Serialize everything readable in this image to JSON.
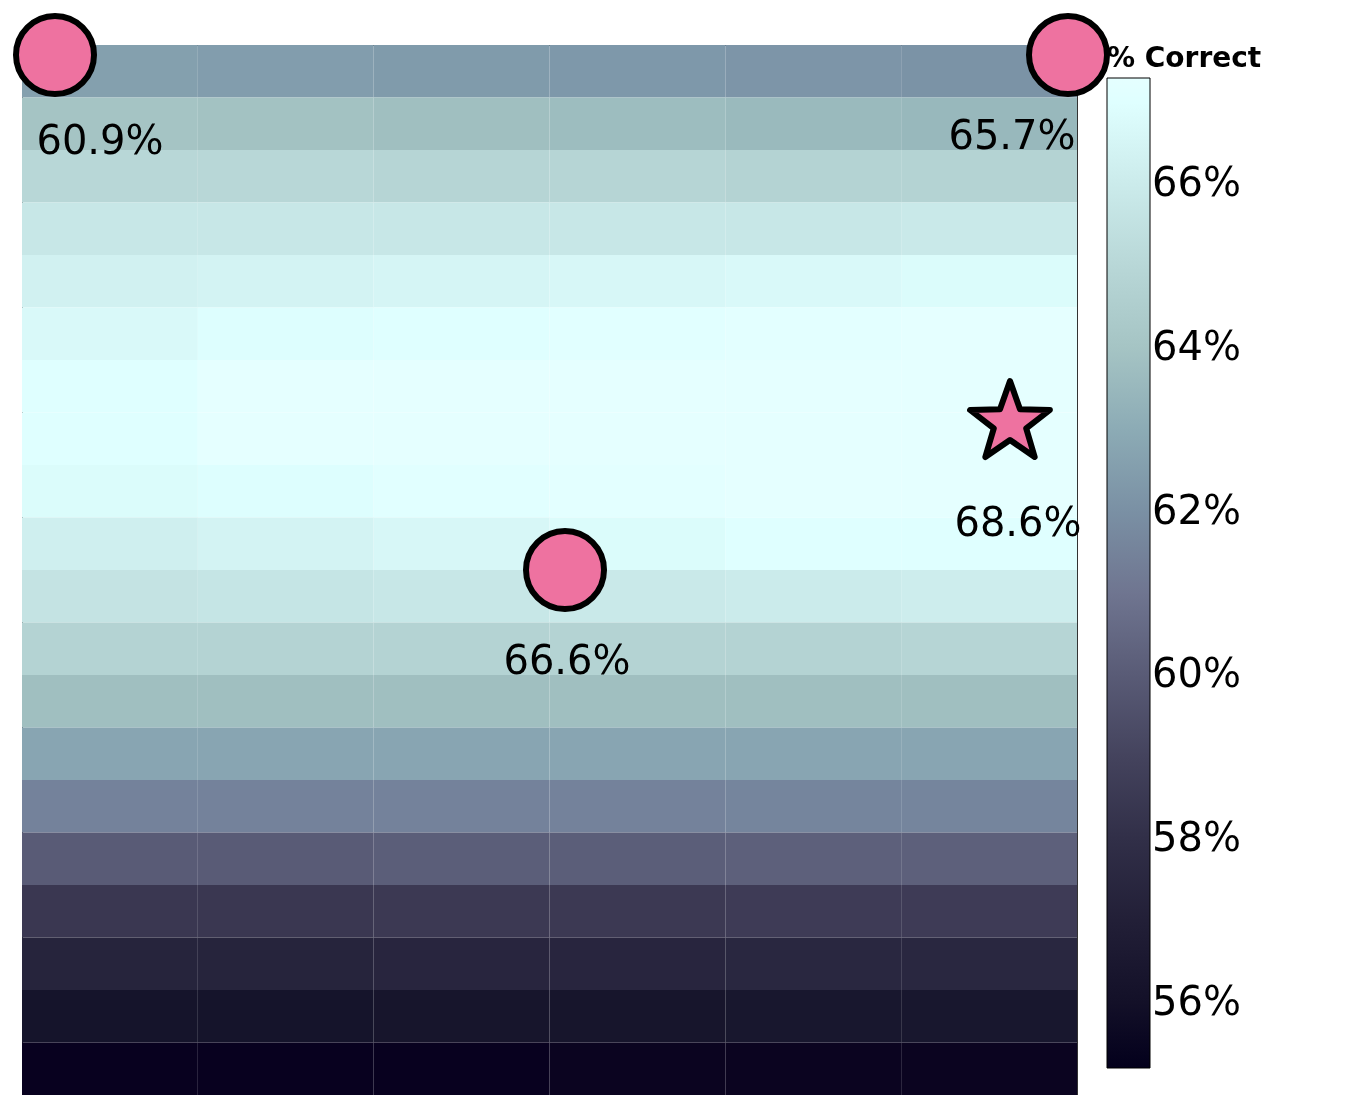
{
  "chart_data": {
    "type": "heatmap",
    "clabel": "% Correct",
    "categories": [
      null,
      null,
      null,
      null,
      null,
      null
    ],
    "y_categories": [
      null,
      null,
      null,
      null,
      null,
      null,
      null,
      null,
      null,
      null,
      null,
      null,
      null,
      null,
      null,
      null,
      null,
      null,
      null,
      null
    ],
    "cells": [
      [
        62.6,
        62.5,
        62.4,
        62.3,
        62.2,
        62.1
      ],
      [
        64.0,
        63.9,
        63.8,
        63.7,
        63.6,
        63.5
      ],
      [
        65.0,
        65.0,
        64.9,
        64.9,
        64.8,
        64.8
      ],
      [
        65.8,
        65.8,
        65.8,
        65.8,
        65.8,
        65.9
      ],
      [
        66.3,
        66.4,
        66.5,
        66.6,
        66.7,
        66.8
      ],
      [
        66.7,
        66.9,
        67.0,
        67.1,
        67.2,
        67.3
      ],
      [
        67.0,
        67.3,
        67.3,
        67.3,
        67.3,
        67.3
      ],
      [
        67.0,
        67.3,
        67.3,
        67.3,
        67.3,
        67.3
      ],
      [
        66.8,
        66.9,
        67.1,
        67.2,
        67.3,
        67.3
      ],
      [
        66.2,
        66.4,
        66.6,
        66.8,
        67.0,
        67.0
      ],
      [
        65.6,
        65.7,
        65.8,
        65.9,
        66.0,
        66.1
      ],
      [
        64.8,
        64.8,
        64.8,
        64.8,
        64.8,
        64.9
      ],
      [
        63.8,
        63.8,
        63.8,
        63.8,
        63.8,
        63.8
      ],
      [
        62.8,
        62.8,
        62.8,
        62.8,
        62.8,
        62.8
      ],
      [
        61.5,
        61.5,
        61.5,
        61.5,
        61.6,
        61.6
      ],
      [
        60.0,
        60.0,
        60.1,
        60.1,
        60.2,
        60.2
      ],
      [
        58.5,
        58.5,
        58.6,
        58.6,
        58.7,
        58.7
      ],
      [
        57.3,
        57.3,
        57.4,
        57.4,
        57.5,
        57.5
      ],
      [
        56.2,
        56.2,
        56.3,
        56.3,
        56.4,
        56.4
      ],
      [
        55.4,
        55.4,
        55.4,
        55.5,
        55.5,
        55.5
      ]
    ],
    "clim": [
      55.2,
      67.3
    ],
    "cticks": [
      {
        "value": 56,
        "label": "56%"
      },
      {
        "value": 58,
        "label": "58%"
      },
      {
        "value": 60,
        "label": "60%"
      },
      {
        "value": 62,
        "label": "62%"
      },
      {
        "value": 64,
        "label": "64%"
      },
      {
        "value": 66,
        "label": "66%"
      }
    ],
    "annotations": [
      "60.9%",
      "65.7%",
      "66.6%",
      "68.6%"
    ]
  }
}
